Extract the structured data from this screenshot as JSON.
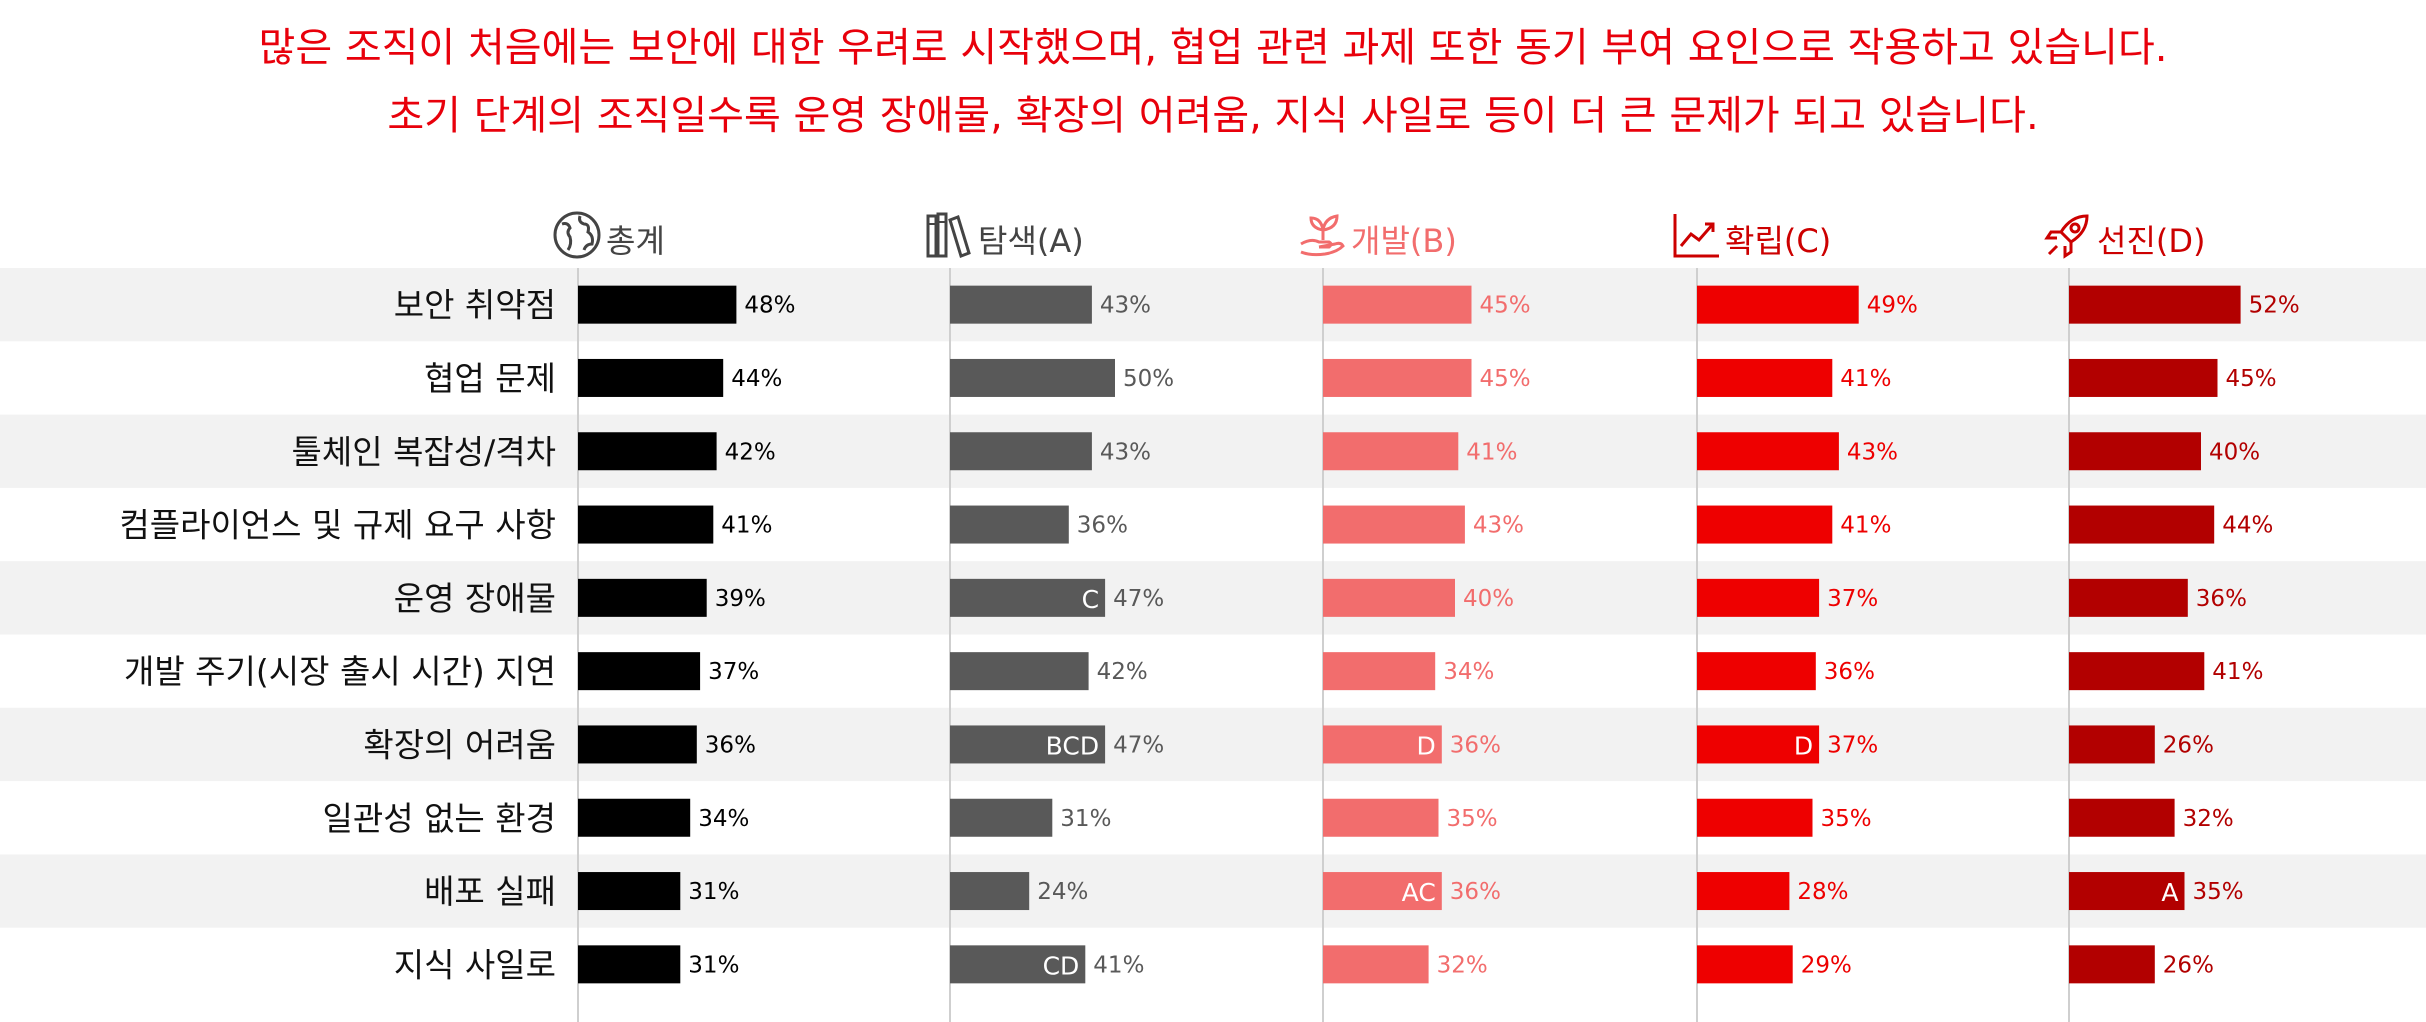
{
  "subtitle": {
    "line1": "많은 조직이 처음에는 보안에 대한 우려로 시작했으며, 협업 관련 과제 또한 동기 부여 요인으로 작용하고 있습니다.",
    "line2": "초기 단계의 조직일수록 운영 장애물, 확장의 어려움, 지식 사일로 등이 더 큰 문제가 되고 있습니다."
  },
  "chart_data": {
    "type": "bar",
    "orientation": "horizontal",
    "value_format": "percent",
    "xlim": [
      0,
      100
    ],
    "categories": [
      "보안 취약점",
      "협업 문제",
      "툴체인 복잡성/격차",
      "컴플라이언스 및 규제 요구 사항",
      "운영 장애물",
      "개발 주기(시장 출시 시간) 지연",
      "확장의 어려움",
      "일관성 없는 환경",
      "배포 실패",
      "지식 사일로"
    ],
    "series": [
      {
        "name": "총계",
        "icon": "globe-icon",
        "color": "#000000",
        "header_color": "#444444",
        "label_color": "#000000",
        "values": [
          48,
          44,
          42,
          41,
          39,
          37,
          36,
          34,
          31,
          31
        ],
        "markers": [
          "",
          "",
          "",
          "",
          "",
          "",
          "",
          "",
          "",
          ""
        ]
      },
      {
        "name": "탐색(A)",
        "icon": "books-icon",
        "color": "#595959",
        "header_color": "#444444",
        "label_color": "#595959",
        "values": [
          43,
          50,
          43,
          36,
          47,
          42,
          47,
          31,
          24,
          41
        ],
        "markers": [
          "",
          "",
          "",
          "",
          "C",
          "",
          "BCD",
          "",
          "",
          "CD"
        ]
      },
      {
        "name": "개발(B)",
        "icon": "sprout-icon",
        "color": "#f26d6d",
        "header_color": "#f26d6d",
        "label_color": "#f26d6d",
        "values": [
          45,
          45,
          41,
          43,
          40,
          34,
          36,
          35,
          36,
          32
        ],
        "markers": [
          "",
          "",
          "",
          "",
          "",
          "",
          "D",
          "",
          "AC",
          ""
        ]
      },
      {
        "name": "확립(C)",
        "icon": "chart-up-icon",
        "color": "#ee0000",
        "header_color": "#cc0000",
        "label_color": "#ee0000",
        "values": [
          49,
          41,
          43,
          41,
          37,
          36,
          37,
          35,
          28,
          29
        ],
        "markers": [
          "",
          "",
          "",
          "",
          "",
          "",
          "D",
          "",
          "",
          ""
        ]
      },
      {
        "name": "선진(D)",
        "icon": "rocket-icon",
        "color": "#b20000",
        "header_color": "#cc0000",
        "label_color": "#b20000",
        "values": [
          52,
          45,
          40,
          44,
          36,
          41,
          26,
          32,
          35,
          26
        ],
        "markers": [
          "",
          "",
          "",
          "",
          "",
          "",
          "",
          "",
          "A",
          ""
        ]
      }
    ]
  }
}
